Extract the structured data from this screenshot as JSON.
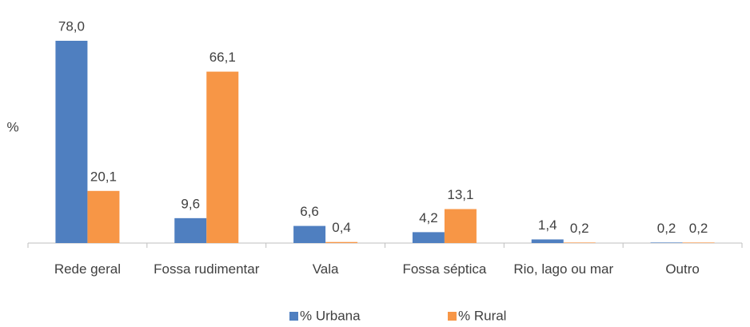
{
  "chart_data": {
    "type": "bar",
    "y_label": "%",
    "categories": [
      "Rede geral",
      "Fossa rudimentar",
      "Vala",
      "Fossa séptica",
      "Rio, lago ou mar",
      "Outro"
    ],
    "series": [
      {
        "name": "% Urbana",
        "color": "#4f7fc0",
        "values": [
          78.0,
          9.6,
          6.6,
          4.2,
          1.4,
          0.2
        ],
        "value_labels": [
          "78,0",
          "9,6",
          "6,6",
          "4,2",
          "1,4",
          "0,2"
        ]
      },
      {
        "name": "% Rural",
        "color": "#f79646",
        "values": [
          20.1,
          66.1,
          0.4,
          13.1,
          0.2,
          0.2
        ],
        "value_labels": [
          "20,1",
          "66,1",
          "0,4",
          "13,1",
          "0,2",
          "0,2"
        ]
      }
    ],
    "legend": "bottom"
  }
}
